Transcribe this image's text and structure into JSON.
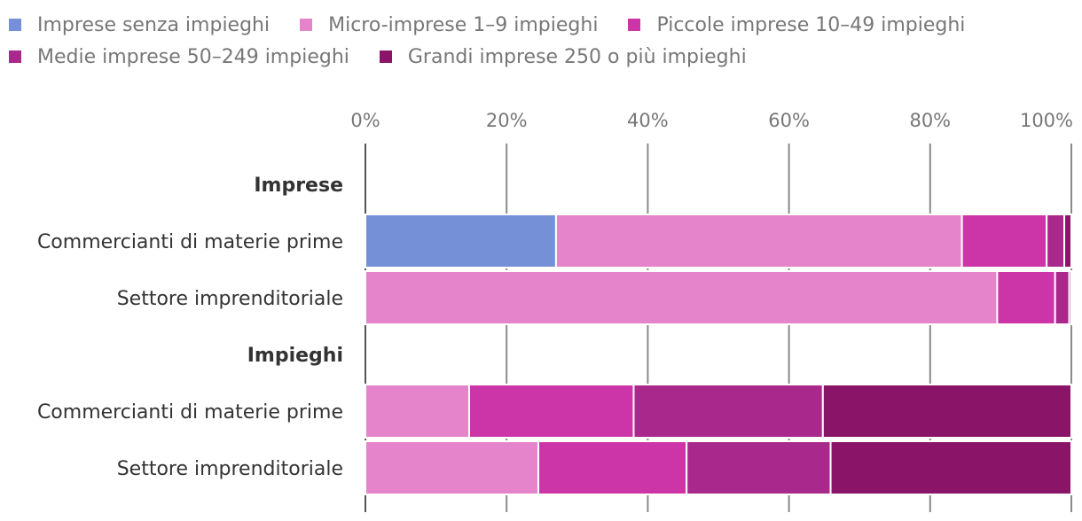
{
  "chart_data": {
    "type": "bar",
    "orientation": "horizontal",
    "stacked": true,
    "x_ticks": [
      "0%",
      "20%",
      "40%",
      "60%",
      "80%",
      "100%"
    ],
    "xlim": [
      0,
      100
    ],
    "grid": true,
    "legend_position": "top",
    "series": [
      {
        "name": "Imprese senza impieghi",
        "color": "#7690d8"
      },
      {
        "name": "Micro-imprese 1–9 impieghi",
        "color": "#e584cb"
      },
      {
        "name": "Piccole imprese 10–49 impieghi",
        "color": "#cc35a7"
      },
      {
        "name": "Medie imprese 50–249 impieghi",
        "color": "#a8288c"
      },
      {
        "name": "Grandi imprese 250 o più impieghi",
        "color": "#8a1568"
      }
    ],
    "groups": [
      {
        "label": "Imprese",
        "rows": [
          {
            "label": "Commercianti di materie prime",
            "values": [
              27,
              57.5,
              12,
              2.5,
              1
            ]
          },
          {
            "label": "Settore imprenditoriale",
            "values": [
              0,
              89.5,
              8.2,
              2,
              0.3
            ]
          }
        ]
      },
      {
        "label": "Impieghi",
        "rows": [
          {
            "label": "Commercianti di materie prime",
            "values": [
              0,
              14.7,
              23.3,
              26.8,
              35.2
            ]
          },
          {
            "label": "Settore imprenditoriale",
            "values": [
              0,
              24.5,
              21,
              20.4,
              34.1
            ]
          }
        ]
      }
    ]
  }
}
